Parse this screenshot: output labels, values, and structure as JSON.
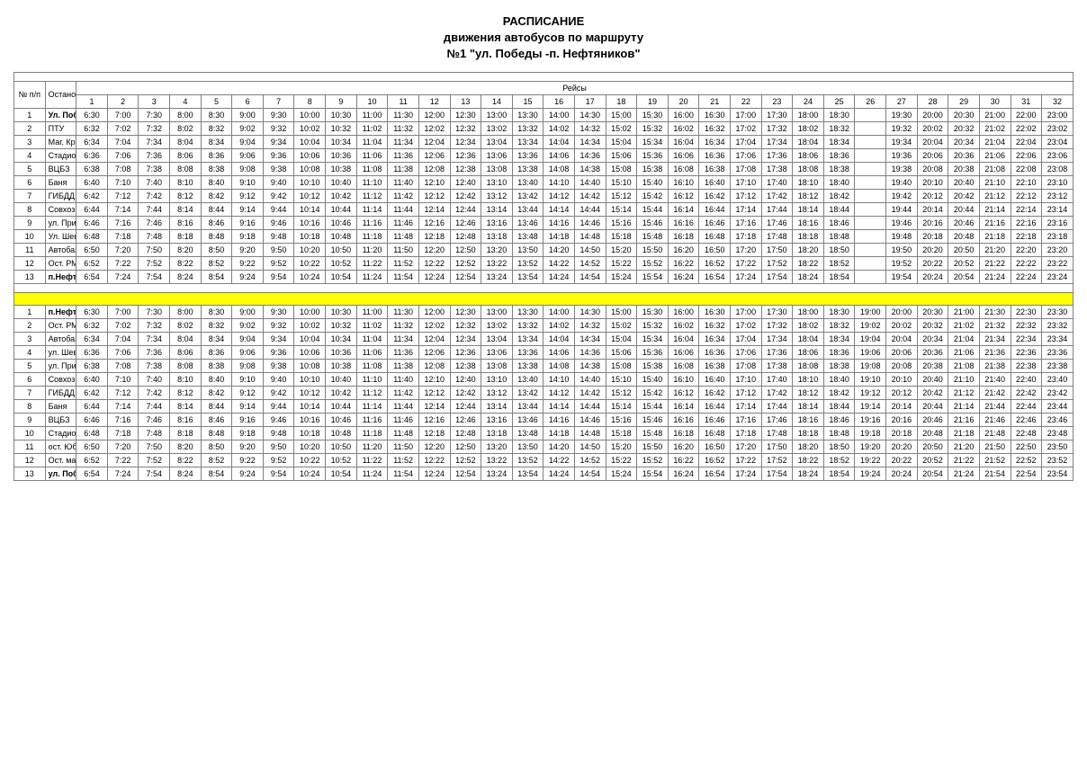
{
  "title": {
    "line1": "РАСПИСАНИЕ",
    "line2": "движения автобусов по маршруту",
    "line3": "№1 \"ул. Победы -п. Нефтяников\""
  },
  "headers": {
    "num": "№ п/п",
    "stop": "Остановочные пункты",
    "trips": "Рейсы"
  },
  "trip_numbers": [
    "1",
    "2",
    "3",
    "4",
    "5",
    "6",
    "7",
    "8",
    "9",
    "10",
    "11",
    "12",
    "13",
    "14",
    "15",
    "16",
    "17",
    "18",
    "19",
    "20",
    "21",
    "22",
    "23",
    "24",
    "25",
    "26",
    "27",
    "28",
    "29",
    "30",
    "31",
    "32"
  ],
  "direction1": [
    {
      "n": "1",
      "name": "Ул. Победы",
      "bold": true,
      "t": [
        "6:30",
        "7:00",
        "7:30",
        "8:00",
        "8:30",
        "9:00",
        "9:30",
        "10:00",
        "10:30",
        "11:00",
        "11:30",
        "12:00",
        "12:30",
        "13:00",
        "13:30",
        "14:00",
        "14:30",
        "15:00",
        "15:30",
        "16:00",
        "16:30",
        "17:00",
        "17:30",
        "18:00",
        "18:30",
        "",
        "19:30",
        "20:00",
        "20:30",
        "21:00",
        "22:00",
        "23:00"
      ]
    },
    {
      "n": "2",
      "name": "ПТУ",
      "bold": false,
      "t": [
        "6:32",
        "7:02",
        "7:32",
        "8:02",
        "8:32",
        "9:02",
        "9:32",
        "10:02",
        "10:32",
        "11:02",
        "11:32",
        "12:02",
        "12:32",
        "13:02",
        "13:32",
        "14:02",
        "14:32",
        "15:02",
        "15:32",
        "16:02",
        "16:32",
        "17:02",
        "17:32",
        "18:02",
        "18:32",
        "",
        "19:32",
        "20:02",
        "20:32",
        "21:02",
        "22:02",
        "23:02"
      ]
    },
    {
      "n": "3",
      "name": "Маг. Крепар",
      "bold": false,
      "t": [
        "6:34",
        "7:04",
        "7:34",
        "8:04",
        "8:34",
        "9:04",
        "9:34",
        "10:04",
        "10:34",
        "11:04",
        "11:34",
        "12:04",
        "12:34",
        "13:04",
        "13:34",
        "14:04",
        "14:34",
        "15:04",
        "15:34",
        "16:04",
        "16:34",
        "17:04",
        "17:34",
        "18:04",
        "18:34",
        "",
        "19:34",
        "20:04",
        "20:34",
        "21:04",
        "22:04",
        "23:04"
      ]
    },
    {
      "n": "4",
      "name": "Стадион",
      "bold": false,
      "t": [
        "6:36",
        "7:06",
        "7:36",
        "8:06",
        "8:36",
        "9:06",
        "9:36",
        "10:06",
        "10:36",
        "11:06",
        "11:36",
        "12:06",
        "12:36",
        "13:06",
        "13:36",
        "14:06",
        "14:36",
        "15:06",
        "15:36",
        "16:06",
        "16:36",
        "17:06",
        "17:36",
        "18:06",
        "18:36",
        "",
        "19:36",
        "20:06",
        "20:36",
        "21:06",
        "22:06",
        "23:06"
      ]
    },
    {
      "n": "5",
      "name": "ВЦБЗ",
      "bold": false,
      "t": [
        "6:38",
        "7:08",
        "7:38",
        "8:08",
        "8:38",
        "9:08",
        "9:38",
        "10:08",
        "10:38",
        "11:08",
        "11:38",
        "12:08",
        "12:38",
        "13:08",
        "13:38",
        "14:08",
        "14:38",
        "15:08",
        "15:38",
        "16:08",
        "16:38",
        "17:08",
        "17:38",
        "18:08",
        "18:38",
        "",
        "19:38",
        "20:08",
        "20:38",
        "21:08",
        "22:08",
        "23:08"
      ]
    },
    {
      "n": "6",
      "name": "Баня",
      "bold": false,
      "t": [
        "6:40",
        "7:10",
        "7:40",
        "8:10",
        "8:40",
        "9:10",
        "9:40",
        "10:10",
        "10:40",
        "11:10",
        "11:40",
        "12:10",
        "12:40",
        "13:10",
        "13:40",
        "14:10",
        "14:40",
        "15:10",
        "15:40",
        "16:10",
        "16:40",
        "17:10",
        "17:40",
        "18:10",
        "18:40",
        "",
        "19:40",
        "20:10",
        "20:40",
        "21:10",
        "22:10",
        "23:10"
      ]
    },
    {
      "n": "7",
      "name": "ГИБДД",
      "bold": false,
      "t": [
        "6:42",
        "7:12",
        "7:42",
        "8:12",
        "8:42",
        "9:12",
        "9:42",
        "10:12",
        "10:42",
        "11:12",
        "11:42",
        "12:12",
        "12:42",
        "13:12",
        "13:42",
        "14:12",
        "14:42",
        "15:12",
        "15:42",
        "16:12",
        "16:42",
        "17:12",
        "17:42",
        "18:12",
        "18:42",
        "",
        "19:42",
        "20:12",
        "20:42",
        "21:12",
        "22:12",
        "23:12"
      ]
    },
    {
      "n": "8",
      "name": "Совхоз",
      "bold": false,
      "t": [
        "6:44",
        "7:14",
        "7:44",
        "8:14",
        "8:44",
        "9:14",
        "9:44",
        "10:14",
        "10:44",
        "11:14",
        "11:44",
        "12:14",
        "12:44",
        "13:14",
        "13:44",
        "14:14",
        "14:44",
        "15:14",
        "15:44",
        "16:14",
        "16:44",
        "17:14",
        "17:44",
        "18:14",
        "18:44",
        "",
        "19:44",
        "20:14",
        "20:44",
        "21:14",
        "22:14",
        "23:14"
      ]
    },
    {
      "n": "9",
      "name": "ул. Пристанская",
      "bold": false,
      "t": [
        "6:46",
        "7:16",
        "7:46",
        "8:16",
        "8:46",
        "9:16",
        "9:46",
        "10:16",
        "10:46",
        "11:16",
        "11:46",
        "12:16",
        "12:46",
        "13:16",
        "13:46",
        "14:16",
        "14:46",
        "15:16",
        "15:46",
        "16:16",
        "16:46",
        "17:16",
        "17:46",
        "18:16",
        "18:46",
        "",
        "19:46",
        "20:16",
        "20:46",
        "21:16",
        "22:16",
        "23:16"
      ]
    },
    {
      "n": "10",
      "name": "Ул. Шевченко",
      "bold": false,
      "t": [
        "6:48",
        "7:18",
        "7:48",
        "8:18",
        "8:48",
        "9:18",
        "9:48",
        "10:18",
        "10:48",
        "11:18",
        "11:48",
        "12:18",
        "12:48",
        "13:18",
        "13:48",
        "14:18",
        "14:48",
        "15:18",
        "15:48",
        "16:18",
        "16:48",
        "17:18",
        "17:48",
        "18:18",
        "18:48",
        "",
        "19:48",
        "20:18",
        "20:48",
        "21:18",
        "22:18",
        "23:18"
      ]
    },
    {
      "n": "11",
      "name": "Автобаза",
      "bold": false,
      "t": [
        "6:50",
        "7:20",
        "7:50",
        "8:20",
        "8:50",
        "9:20",
        "9:50",
        "10:20",
        "10:50",
        "11:20",
        "11:50",
        "12:20",
        "12:50",
        "13:20",
        "13:50",
        "14:20",
        "14:50",
        "15:20",
        "15:50",
        "16:20",
        "16:50",
        "17:20",
        "17:50",
        "18:20",
        "18:50",
        "",
        "19:50",
        "20:20",
        "20:50",
        "21:20",
        "22:20",
        "23:20"
      ]
    },
    {
      "n": "12",
      "name": "Ост. РМЗ",
      "bold": false,
      "t": [
        "6:52",
        "7:22",
        "7:52",
        "8:22",
        "8:52",
        "9:22",
        "9:52",
        "10:22",
        "10:52",
        "11:22",
        "11:52",
        "12:22",
        "12:52",
        "13:22",
        "13:52",
        "14:22",
        "14:52",
        "15:22",
        "15:52",
        "16:22",
        "16:52",
        "17:22",
        "17:52",
        "18:22",
        "18:52",
        "",
        "19:52",
        "20:22",
        "20:52",
        "21:22",
        "22:22",
        "23:22"
      ]
    },
    {
      "n": "13",
      "name": "п.Нефтянников",
      "bold": true,
      "t": [
        "6:54",
        "7:24",
        "7:54",
        "8:24",
        "8:54",
        "9:24",
        "9:54",
        "10:24",
        "10:54",
        "11:24",
        "11:54",
        "12:24",
        "12:54",
        "13:24",
        "13:54",
        "14:24",
        "14:54",
        "15:24",
        "15:54",
        "16:24",
        "16:54",
        "17:24",
        "17:54",
        "18:24",
        "18:54",
        "",
        "19:54",
        "20:24",
        "20:54",
        "21:24",
        "22:24",
        "23:24"
      ]
    }
  ],
  "direction2": [
    {
      "n": "1",
      "name": "п.Нефтянников",
      "bold": true,
      "t": [
        "6:30",
        "7:00",
        "7:30",
        "8:00",
        "8:30",
        "9:00",
        "9:30",
        "10:00",
        "10:30",
        "11:00",
        "11:30",
        "12:00",
        "12:30",
        "13:00",
        "13:30",
        "14:00",
        "14:30",
        "15:00",
        "15:30",
        "16:00",
        "16:30",
        "17:00",
        "17:30",
        "18:00",
        "18:30",
        "19:00",
        "20:00",
        "20:30",
        "21:00",
        "21:30",
        "22:30",
        "23:30"
      ]
    },
    {
      "n": "2",
      "name": "Ост. РМЗ",
      "bold": false,
      "t": [
        "6:32",
        "7:02",
        "7:32",
        "8:02",
        "8:32",
        "9:02",
        "9:32",
        "10:02",
        "10:32",
        "11:02",
        "11:32",
        "12:02",
        "12:32",
        "13:02",
        "13:32",
        "14:02",
        "14:32",
        "15:02",
        "15:32",
        "16:02",
        "16:32",
        "17:02",
        "17:32",
        "18:02",
        "18:32",
        "19:02",
        "20:02",
        "20:32",
        "21:02",
        "21:32",
        "22:32",
        "23:32"
      ]
    },
    {
      "n": "3",
      "name": "Автобаза",
      "bold": false,
      "t": [
        "6:34",
        "7:04",
        "7:34",
        "8:04",
        "8:34",
        "9:04",
        "9:34",
        "10:04",
        "10:34",
        "11:04",
        "11:34",
        "12:04",
        "12:34",
        "13:04",
        "13:34",
        "14:04",
        "14:34",
        "15:04",
        "15:34",
        "16:04",
        "16:34",
        "17:04",
        "17:34",
        "18:04",
        "18:34",
        "19:04",
        "20:04",
        "20:34",
        "21:04",
        "21:34",
        "22:34",
        "23:34"
      ]
    },
    {
      "n": "4",
      "name": "ул. Шевченко",
      "bold": false,
      "t": [
        "6:36",
        "7:06",
        "7:36",
        "8:06",
        "8:36",
        "9:06",
        "9:36",
        "10:06",
        "10:36",
        "11:06",
        "11:36",
        "12:06",
        "12:36",
        "13:06",
        "13:36",
        "14:06",
        "14:36",
        "15:06",
        "15:36",
        "16:06",
        "16:36",
        "17:06",
        "17:36",
        "18:06",
        "18:36",
        "19:06",
        "20:06",
        "20:36",
        "21:06",
        "21:36",
        "22:36",
        "23:36"
      ]
    },
    {
      "n": "5",
      "name": "ул. Пристанская",
      "bold": false,
      "t": [
        "6:38",
        "7:08",
        "7:38",
        "8:08",
        "8:38",
        "9:08",
        "9:38",
        "10:08",
        "10:38",
        "11:08",
        "11:38",
        "12:08",
        "12:38",
        "13:08",
        "13:38",
        "14:08",
        "14:38",
        "15:08",
        "15:38",
        "16:08",
        "16:38",
        "17:08",
        "17:38",
        "18:08",
        "18:38",
        "19:08",
        "20:08",
        "20:38",
        "21:08",
        "21:38",
        "22:38",
        "23:38"
      ]
    },
    {
      "n": "6",
      "name": "Совхоз",
      "bold": false,
      "t": [
        "6:40",
        "7:10",
        "7:40",
        "8:10",
        "8:40",
        "9:10",
        "9:40",
        "10:10",
        "10:40",
        "11:10",
        "11:40",
        "12:10",
        "12:40",
        "13:10",
        "13:40",
        "14:10",
        "14:40",
        "15:10",
        "15:40",
        "16:10",
        "16:40",
        "17:10",
        "17:40",
        "18:10",
        "18:40",
        "19:10",
        "20:10",
        "20:40",
        "21:10",
        "21:40",
        "22:40",
        "23:40"
      ]
    },
    {
      "n": "7",
      "name": "ГИБДД",
      "bold": false,
      "t": [
        "6:42",
        "7:12",
        "7:42",
        "8:12",
        "8:42",
        "9:12",
        "9:42",
        "10:12",
        "10:42",
        "11:12",
        "11:42",
        "12:12",
        "12:42",
        "13:12",
        "13:42",
        "14:12",
        "14:42",
        "15:12",
        "15:42",
        "16:12",
        "16:42",
        "17:12",
        "17:42",
        "18:12",
        "18:42",
        "19:12",
        "20:12",
        "20:42",
        "21:12",
        "21:42",
        "22:42",
        "23:42"
      ]
    },
    {
      "n": "8",
      "name": "Баня",
      "bold": false,
      "t": [
        "6:44",
        "7:14",
        "7:44",
        "8:14",
        "8:44",
        "9:14",
        "9:44",
        "10:14",
        "10:44",
        "11:14",
        "11:44",
        "12:14",
        "12:44",
        "13:14",
        "13:44",
        "14:14",
        "14:44",
        "15:14",
        "15:44",
        "16:14",
        "16:44",
        "17:14",
        "17:44",
        "18:14",
        "18:44",
        "19:14",
        "20:14",
        "20:44",
        "21:14",
        "21:44",
        "22:44",
        "23:44"
      ]
    },
    {
      "n": "9",
      "name": "ВЦБЗ",
      "bold": false,
      "t": [
        "6:46",
        "7:16",
        "7:46",
        "8:16",
        "8:46",
        "9:16",
        "9:46",
        "10:16",
        "10:46",
        "11:16",
        "11:46",
        "12:16",
        "12:46",
        "13:16",
        "13:46",
        "14:16",
        "14:46",
        "15:16",
        "15:46",
        "16:16",
        "16:46",
        "17:16",
        "17:46",
        "18:16",
        "18:46",
        "19:16",
        "20:16",
        "20:46",
        "21:16",
        "21:46",
        "22:46",
        "23:46"
      ]
    },
    {
      "n": "10",
      "name": "Стадион",
      "bold": false,
      "t": [
        "6:48",
        "7:18",
        "7:48",
        "8:18",
        "8:48",
        "9:18",
        "9:48",
        "10:18",
        "10:48",
        "11:18",
        "11:48",
        "12:18",
        "12:48",
        "13:18",
        "13:48",
        "14:18",
        "14:48",
        "15:18",
        "15:48",
        "16:18",
        "16:48",
        "17:18",
        "17:48",
        "18:18",
        "18:48",
        "19:18",
        "20:18",
        "20:48",
        "21:18",
        "21:48",
        "22:48",
        "23:48"
      ]
    },
    {
      "n": "11",
      "name": "ост. Юбилейный",
      "bold": false,
      "t": [
        "6:50",
        "7:20",
        "7:50",
        "8:20",
        "8:50",
        "9:20",
        "9:50",
        "10:20",
        "10:50",
        "11:20",
        "11:50",
        "12:20",
        "12:50",
        "13:20",
        "13:50",
        "14:20",
        "14:50",
        "15:20",
        "15:50",
        "16:20",
        "16:50",
        "17:20",
        "17:50",
        "18:20",
        "18:50",
        "19:20",
        "20:20",
        "20:50",
        "21:20",
        "21:50",
        "22:50",
        "23:50"
      ]
    },
    {
      "n": "12",
      "name": "Ост. маг. \"Дельта\"",
      "bold": false,
      "t": [
        "6:52",
        "7:22",
        "7:52",
        "8:22",
        "8:52",
        "9:22",
        "9:52",
        "10:22",
        "10:52",
        "11:22",
        "11:52",
        "12:22",
        "12:52",
        "13:22",
        "13:52",
        "14:22",
        "14:52",
        "15:22",
        "15:52",
        "16:22",
        "16:52",
        "17:22",
        "17:52",
        "18:22",
        "18:52",
        "19:22",
        "20:22",
        "20:52",
        "21:22",
        "21:52",
        "22:52",
        "23:52"
      ]
    },
    {
      "n": "13",
      "name": "ул. Победы",
      "bold": true,
      "t": [
        "6:54",
        "7:24",
        "7:54",
        "8:24",
        "8:54",
        "9:24",
        "9:54",
        "10:24",
        "10:54",
        "11:24",
        "11:54",
        "12:24",
        "12:54",
        "13:24",
        "13:54",
        "14:24",
        "14:54",
        "15:24",
        "15:54",
        "16:24",
        "16:54",
        "17:24",
        "17:54",
        "18:24",
        "18:54",
        "19:24",
        "20:24",
        "20:54",
        "21:24",
        "21:54",
        "22:54",
        "23:54"
      ]
    }
  ]
}
